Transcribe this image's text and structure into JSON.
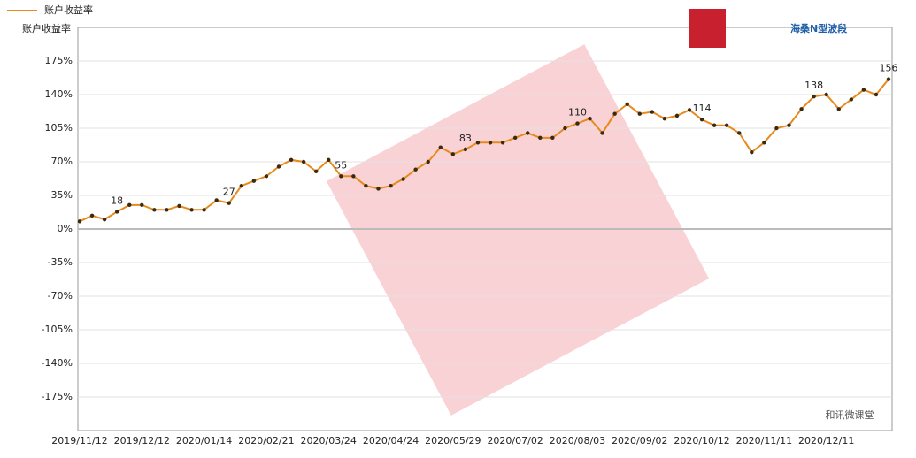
{
  "chart_data": {
    "type": "line",
    "y_label": "账户收益率",
    "logos": [
      "和讯微课堂",
      "海桑N型波段"
    ],
    "categories": [
      "2019/11/12",
      null,
      null,
      null,
      null,
      "2019/12/12",
      null,
      null,
      null,
      null,
      "2020/01/14",
      null,
      null,
      null,
      null,
      "2020/02/21",
      null,
      null,
      null,
      null,
      "2020/03/24",
      null,
      null,
      null,
      null,
      "2020/04/24",
      null,
      null,
      null,
      null,
      "2020/05/29",
      null,
      null,
      null,
      null,
      "2020/07/02",
      null,
      null,
      null,
      null,
      "2020/08/03",
      null,
      null,
      null,
      null,
      "2020/09/02",
      null,
      null,
      null,
      null,
      "2020/10/12",
      null,
      null,
      null,
      null,
      "2020/11/11",
      null,
      null,
      null,
      null,
      "2020/12/11",
      null,
      null,
      null,
      null,
      null
    ],
    "series": [
      {
        "name": "账户收益率",
        "color": "#e8891c",
        "values": [
          8,
          14,
          10,
          18,
          25,
          25,
          20,
          20,
          24,
          20,
          20,
          30,
          27,
          45,
          50,
          55,
          65,
          72,
          70,
          60,
          72,
          55,
          55,
          45,
          42,
          45,
          52,
          62,
          70,
          85,
          78,
          83,
          90,
          90,
          90,
          95,
          100,
          95,
          95,
          105,
          110,
          115,
          100,
          120,
          130,
          120,
          122,
          115,
          118,
          124,
          114,
          108,
          108,
          100,
          80,
          90,
          105,
          108,
          125,
          138,
          140,
          125,
          135,
          145,
          140,
          156
        ],
        "value_labels": [
          null,
          null,
          null,
          "18",
          null,
          null,
          null,
          null,
          null,
          null,
          null,
          null,
          "27",
          null,
          null,
          null,
          null,
          null,
          null,
          null,
          null,
          "55",
          null,
          null,
          null,
          null,
          null,
          null,
          null,
          null,
          null,
          "83",
          null,
          null,
          null,
          null,
          null,
          null,
          null,
          null,
          "110",
          null,
          null,
          null,
          null,
          null,
          null,
          null,
          null,
          null,
          "114",
          null,
          null,
          null,
          null,
          null,
          null,
          null,
          null,
          "138",
          null,
          null,
          null,
          null,
          null,
          "156"
        ]
      }
    ],
    "ylim": [
      -210,
      210
    ],
    "yticks": [
      {
        "value": -175,
        "label": "-175%"
      },
      {
        "value": -140,
        "label": "-140%"
      },
      {
        "value": -105,
        "label": "-105%"
      },
      {
        "value": -70,
        "label": "-70%"
      },
      {
        "value": -35,
        "label": "-35%"
      },
      {
        "value": 0,
        "label": "0%"
      },
      {
        "value": 35,
        "label": "35%"
      },
      {
        "value": 70,
        "label": "70%"
      },
      {
        "value": 105,
        "label": "105%"
      },
      {
        "value": 140,
        "label": "140%"
      },
      {
        "value": 175,
        "label": "175%"
      }
    ],
    "grid": true,
    "legend": "top-left"
  }
}
